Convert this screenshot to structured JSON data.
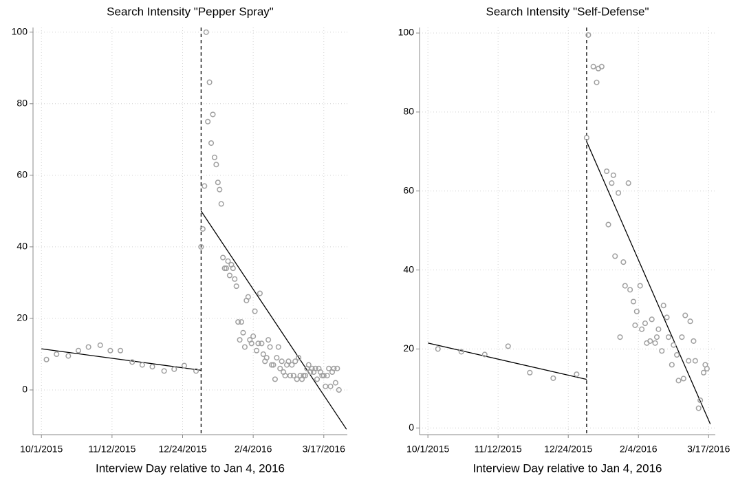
{
  "chart_data": [
    {
      "type": "scatter",
      "title": "Search Intensity \"Pepper Spray\"",
      "x_label": "Interview Day relative to Jan 4, 2016",
      "xlim": [
        -100,
        87
      ],
      "ylim": [
        -12.5,
        101.3
      ],
      "xticks": [
        {
          "value": -95,
          "label": "10/1/2015"
        },
        {
          "value": -53,
          "label": "11/12/2015"
        },
        {
          "value": -11,
          "label": "12/24/2015"
        },
        {
          "value": 31,
          "label": "2/4/2016"
        },
        {
          "value": 73,
          "label": "3/17/2016"
        }
      ],
      "yticks": [
        0,
        20,
        40,
        60,
        80,
        100
      ],
      "grid": true,
      "marker_color": "#a0a0a0",
      "line_color": "#000000",
      "cutoff": 0,
      "x": [
        -92,
        -86,
        -79,
        -73,
        -67,
        -60,
        -54,
        -48,
        -41,
        -35,
        -29,
        -22,
        -16,
        -10,
        -3,
        0,
        1,
        2,
        3,
        4,
        5,
        6,
        7,
        8,
        9,
        10,
        11,
        12,
        13,
        14,
        15,
        16,
        17,
        18,
        19,
        20,
        21,
        22,
        23,
        24,
        25,
        26,
        27,
        28,
        29,
        30,
        31,
        32,
        33,
        34,
        35,
        36,
        37,
        38,
        39,
        40,
        41,
        42,
        43,
        44,
        45,
        46,
        47,
        48,
        49,
        50,
        51,
        52,
        53,
        54,
        55,
        56,
        57,
        58,
        59,
        60,
        61,
        62,
        63,
        64,
        65,
        66,
        67,
        68,
        69,
        70,
        71,
        72,
        73,
        74,
        75,
        76,
        77,
        78,
        79,
        80,
        81,
        82
      ],
      "y": [
        8.5,
        10,
        9.5,
        11,
        12,
        12.5,
        11,
        11,
        7.8,
        7,
        6.5,
        5.3,
        5.8,
        6.8,
        5.3,
        40,
        45,
        57,
        100,
        75,
        86,
        69,
        77,
        65,
        63,
        58,
        56,
        52,
        37,
        34,
        34,
        36,
        32,
        35,
        34,
        31,
        29,
        19,
        14,
        19,
        16,
        12,
        25,
        26,
        14,
        13,
        15,
        22,
        11,
        13,
        27,
        13,
        10,
        8,
        9,
        14,
        12,
        7,
        7,
        3,
        9,
        12,
        6,
        8,
        5,
        4,
        7,
        8,
        4,
        7,
        4,
        8,
        3,
        9,
        4,
        3,
        4,
        4,
        6,
        7,
        5,
        6,
        5,
        6,
        3,
        6,
        5,
        4,
        4,
        1,
        4,
        6,
        1,
        5,
        6,
        2,
        6,
        0
      ],
      "fit_lines": [
        {
          "x": [
            -95,
            0
          ],
          "y": [
            11.5,
            5.5
          ]
        },
        {
          "x": [
            0,
            86.5
          ],
          "y": [
            50,
            -11
          ]
        }
      ]
    },
    {
      "type": "scatter",
      "title": "Search Intensity \"Self-Defense\"",
      "x_label": "Interview Day relative to Jan 4, 2016",
      "xlim": [
        -100,
        77
      ],
      "ylim": [
        -1.7,
        101.4
      ],
      "xticks": [
        {
          "value": -95,
          "label": "10/1/2015"
        },
        {
          "value": -53,
          "label": "11/12/2015"
        },
        {
          "value": -11,
          "label": "12/24/2015"
        },
        {
          "value": 31,
          "label": "2/4/2016"
        },
        {
          "value": 73,
          "label": "3/17/2016"
        }
      ],
      "yticks": [
        0,
        20,
        40,
        60,
        80,
        100
      ],
      "grid": true,
      "marker_color": "#a0a0a0",
      "line_color": "#000000",
      "cutoff": 0,
      "x": [
        -89,
        -75,
        -61,
        -47,
        -34,
        -20,
        -6,
        0,
        1,
        4,
        6,
        7,
        9,
        12,
        13,
        15,
        16,
        17,
        19,
        20,
        22,
        23,
        25,
        26,
        28,
        29,
        30,
        32,
        33,
        35,
        36,
        38,
        39,
        41,
        42,
        43,
        45,
        46,
        48,
        49,
        51,
        52,
        54,
        55,
        57,
        58,
        59,
        61,
        62,
        64,
        65,
        67,
        68,
        70,
        71,
        72
      ],
      "y": [
        20,
        19.3,
        18.6,
        20.7,
        14,
        12.6,
        13.6,
        73.5,
        99.5,
        91.5,
        87.5,
        91,
        91.5,
        65,
        51.5,
        62,
        64,
        43.5,
        59.5,
        23,
        42,
        36,
        62,
        35,
        32,
        26,
        29.5,
        36,
        25,
        26.5,
        21.5,
        22,
        27.5,
        21.5,
        23,
        25,
        19.5,
        31,
        28,
        23,
        16,
        21,
        18.5,
        12,
        23,
        12.5,
        28.5,
        17,
        27,
        22,
        17,
        5,
        7,
        14,
        16,
        15
      ],
      "fit_lines": [
        {
          "x": [
            -95,
            0
          ],
          "y": [
            21.5,
            12.3
          ]
        },
        {
          "x": [
            0,
            74
          ],
          "y": [
            72.5,
            1
          ]
        }
      ]
    }
  ]
}
